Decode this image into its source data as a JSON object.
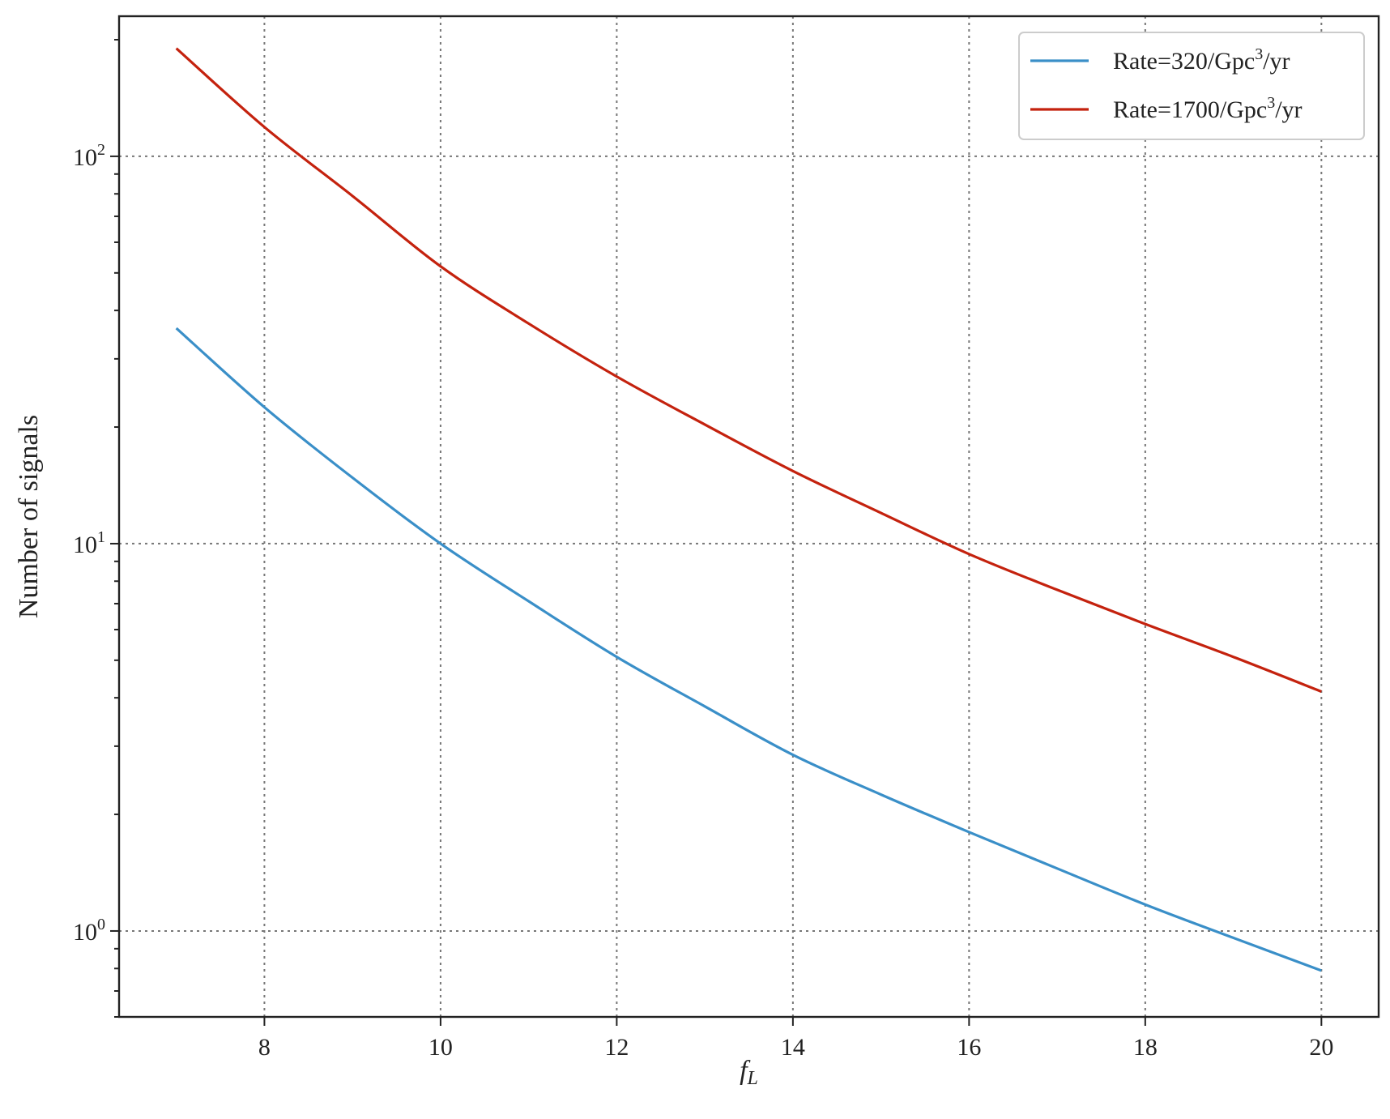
{
  "chart_data": {
    "type": "line",
    "xlabel_base": "f",
    "xlabel_sub": "L",
    "ylabel": "Number of signals",
    "xscale": "linear",
    "yscale": "log",
    "xlim": [
      6.35,
      20.65
    ],
    "ylim": [
      0.6,
      230
    ],
    "xticks": [
      8,
      10,
      12,
      14,
      16,
      18,
      20
    ],
    "yticks": [
      {
        "value": 1,
        "base": "10",
        "exp": "0"
      },
      {
        "value": 10,
        "base": "10",
        "exp": "1"
      },
      {
        "value": 100,
        "base": "10",
        "exp": "2"
      }
    ],
    "grid": true,
    "legend_position": "top-right",
    "series": [
      {
        "name": "Rate=320/Gpc",
        "name_sup": "3",
        "name_suffix": "/yr",
        "color": "#3a8fc8",
        "x": [
          7,
          8,
          9,
          10,
          11,
          12,
          13,
          14,
          15,
          16,
          17,
          18,
          19,
          20
        ],
        "y": [
          36,
          22.5,
          14.8,
          10,
          7.1,
          5.1,
          3.8,
          2.85,
          2.25,
          1.8,
          1.45,
          1.17,
          0.96,
          0.79
        ]
      },
      {
        "name": "Rate=1700/Gpc",
        "name_sup": "3",
        "name_suffix": "/yr",
        "color": "#c4220e",
        "x": [
          7,
          8,
          9,
          10,
          11,
          12,
          13,
          14,
          15,
          16,
          17,
          18,
          19,
          20
        ],
        "y": [
          190,
          119,
          79,
          52,
          37,
          27,
          20.3,
          15.4,
          12,
          9.4,
          7.6,
          6.2,
          5.1,
          4.15
        ]
      }
    ]
  }
}
